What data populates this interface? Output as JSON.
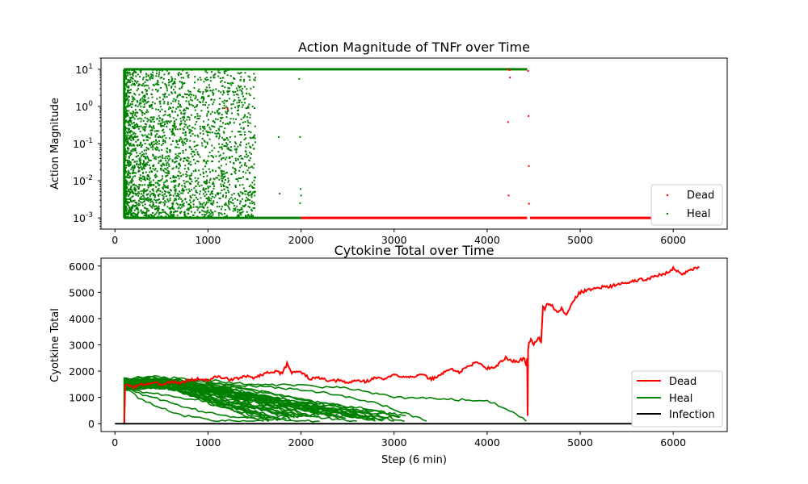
{
  "charts": [
    {
      "title": "Action Magnitude of TNFr over Time",
      "ylabel": "Action Magnitude",
      "xlabel": "",
      "y_exponents": [
        "1",
        "0",
        "-1",
        "-2",
        "-3"
      ],
      "x_ticks": [
        "0",
        "1000",
        "2000",
        "3000",
        "4000",
        "5000",
        "6000"
      ],
      "legend": [
        "Dead",
        "Heal"
      ]
    },
    {
      "title": "Cytokine Total over Time",
      "ylabel": "Cyotkine Total",
      "xlabel": "Step (6 min)",
      "y_ticks": [
        "0",
        "1000",
        "2000",
        "3000",
        "4000",
        "5000",
        "6000"
      ],
      "x_ticks": [
        "0",
        "1000",
        "2000",
        "3000",
        "4000",
        "5000",
        "6000"
      ],
      "legend": [
        "Dead",
        "Heal",
        "Infection"
      ]
    }
  ],
  "colors": {
    "dead": "#ff0000",
    "heal": "#008000",
    "infection": "#000000"
  },
  "chart_data": [
    {
      "type": "scatter",
      "title": "Action Magnitude of TNFr over Time",
      "xlabel": "",
      "ylabel": "Action Magnitude",
      "y_scale": "log",
      "xlim": [
        -150,
        6580
      ],
      "ylim": [
        0.0005,
        20
      ],
      "x_ticks": [
        0,
        1000,
        2000,
        3000,
        4000,
        5000,
        6000
      ],
      "y_ticks": [
        0.001,
        0.01,
        0.1,
        1,
        10
      ],
      "legend_position": "lower right",
      "series": [
        {
          "name": "Dead",
          "color": "#ff0000",
          "points": [
            [
              1180,
              0.9
            ],
            [
              1210,
              0.85
            ],
            [
              4220,
              10
            ],
            [
              4240,
              9.5
            ],
            [
              4245,
              6
            ],
            [
              4225,
              0.38
            ],
            [
              4230,
              0.004
            ],
            [
              4440,
              9
            ],
            [
              4445,
              0.55
            ],
            [
              4448,
              0.025
            ],
            [
              4450,
              0.0024
            ],
            [
              4260,
              0.001
            ],
            [
              4470,
              0.001
            ]
          ],
          "bands": [
            {
              "x_range": [
                2000,
                4430
              ],
              "y": 0.001
            },
            {
              "x_range": [
                4460,
                6280
              ],
              "y": 0.001
            },
            {
              "x_range": [
                2000,
                4430
              ],
              "y": 10
            }
          ]
        },
        {
          "name": "Heal",
          "color": "#008000",
          "points": [
            [
              120,
              8
            ],
            [
              160,
              0.5
            ],
            [
              200,
              0.02
            ],
            [
              250,
              3
            ],
            [
              300,
              0.004
            ],
            [
              340,
              0.15
            ],
            [
              390,
              0.002
            ],
            [
              430,
              1.2
            ],
            [
              470,
              0.03
            ],
            [
              520,
              0.006
            ],
            [
              560,
              0.4
            ],
            [
              600,
              0.0015
            ],
            [
              650,
              0.08
            ],
            [
              700,
              2
            ],
            [
              740,
              0.01
            ],
            [
              800,
              0.3
            ],
            [
              850,
              0.003
            ],
            [
              900,
              0.05
            ],
            [
              950,
              1.5
            ],
            [
              1000,
              0.007
            ],
            [
              1050,
              0.2
            ],
            [
              1100,
              0.002
            ],
            [
              1150,
              0.6
            ],
            [
              1250,
              0.015
            ],
            [
              1300,
              0.1
            ],
            [
              1350,
              5
            ],
            [
              1400,
              0.03
            ],
            [
              1450,
              0.5
            ],
            [
              1480,
              1.0
            ],
            [
              1500,
              0.9
            ],
            [
              1510,
              10
            ],
            [
              1760,
              0.15
            ],
            [
              1770,
              0.0045
            ],
            [
              1980,
              5.5
            ],
            [
              1990,
              0.15
            ],
            [
              1995,
              0.006
            ],
            [
              2000,
              0.004
            ],
            [
              1990,
              0.0025
            ]
          ],
          "bands": [
            {
              "x_range": [
                95,
                2000
              ],
              "y": 10
            },
            {
              "x_range": [
                95,
                2000
              ],
              "y": 0.001
            },
            {
              "x_range": [
                2000,
                4430
              ],
              "y": 10
            }
          ],
          "vertical_at": 100
        }
      ]
    },
    {
      "type": "line",
      "title": "Cytokine Total over Time",
      "xlabel": "Step (6 min)",
      "ylabel": "Cyotkine Total",
      "xlim": [
        -150,
        6580
      ],
      "ylim": [
        -300,
        6300
      ],
      "x_ticks": [
        0,
        1000,
        2000,
        3000,
        4000,
        5000,
        6000
      ],
      "y_ticks": [
        0,
        1000,
        2000,
        3000,
        4000,
        5000,
        6000
      ],
      "legend_position": "lower right",
      "series": [
        {
          "name": "Dead",
          "color": "#ff0000",
          "x": [
            100,
            110,
            130,
            200,
            300,
            400,
            500,
            600,
            700,
            800,
            900,
            1000,
            1100,
            1200,
            1300,
            1400,
            1500,
            1600,
            1700,
            1800,
            1850,
            1900,
            1950,
            2000,
            2100,
            2200,
            2300,
            2400,
            2500,
            2600,
            2700,
            2800,
            2900,
            3000,
            3100,
            3200,
            3300,
            3400,
            3500,
            3600,
            3700,
            3800,
            3900,
            4000,
            4100,
            4200,
            4300,
            4350,
            4400,
            4420,
            4430,
            4435,
            4440,
            4450,
            4470,
            4500,
            4550,
            4580,
            4600,
            4620,
            4650,
            4700,
            4750,
            4800,
            4850,
            4900,
            4950,
            5000,
            5100,
            5200,
            5300,
            5400,
            5500,
            5600,
            5700,
            5800,
            5900,
            6000,
            6100,
            6200,
            6280
          ],
          "y": [
            0,
            1500,
            1450,
            1400,
            1500,
            1550,
            1500,
            1600,
            1550,
            1650,
            1700,
            1650,
            1800,
            1700,
            1700,
            1800,
            1750,
            1900,
            2000,
            1900,
            2300,
            1950,
            2000,
            1950,
            1700,
            1750,
            1600,
            1650,
            1550,
            1650,
            1600,
            1750,
            1700,
            1850,
            1800,
            1800,
            1850,
            1700,
            1850,
            2100,
            1950,
            2200,
            2350,
            2100,
            2200,
            2500,
            2350,
            2400,
            2500,
            2200,
            2500,
            300,
            2800,
            3100,
            3200,
            3000,
            3300,
            3100,
            4500,
            4300,
            4600,
            4500,
            4200,
            4400,
            4100,
            4500,
            4800,
            5000,
            5100,
            5200,
            5200,
            5300,
            5350,
            5450,
            5500,
            5600,
            5700,
            5900,
            5700,
            5850,
            5950
          ]
        },
        {
          "name": "Heal",
          "color": "#008000",
          "curves": [
            {
              "x": [
                100,
                400,
                800,
                1200,
                1600,
                2000,
                2400,
                2800,
                3200,
                3350
              ],
              "y": [
                1400,
                1500,
                1600,
                1500,
                1400,
                1300,
                1100,
                800,
                300,
                100
              ]
            },
            {
              "x": [
                100,
                500,
                1000,
                1500,
                2000,
                2500,
                3000,
                3500,
                4000,
                4200,
                4420
              ],
              "y": [
                1400,
                1500,
                1650,
                1500,
                1450,
                1350,
                1000,
                950,
                850,
                600,
                100
              ]
            },
            {
              "x": [
                100,
                400,
                900,
                1400,
                1900,
                2300,
                2700,
                3000
              ],
              "y": [
                1400,
                1350,
                1300,
                1150,
                900,
                700,
                400,
                100
              ]
            },
            {
              "x": [
                100,
                300,
                700,
                1100,
                1500,
                1900,
                2300,
                2600
              ],
              "y": [
                1400,
                1200,
                1000,
                800,
                600,
                400,
                200,
                100
              ]
            },
            {
              "x": [
                100,
                300,
                600,
                900,
                1200,
                1500,
                1800,
                2200
              ],
              "y": [
                1400,
                1100,
                800,
                500,
                300,
                200,
                150,
                100
              ]
            },
            {
              "x": [
                100,
                250,
                500,
                750,
                1000,
                1300,
                1600
              ],
              "y": [
                1400,
                1000,
                600,
                300,
                150,
                100,
                100
              ]
            },
            {
              "x": [
                100,
                400,
                800,
                1200,
                1600,
                2000,
                2400,
                2800
              ],
              "y": [
                1400,
                1450,
                1300,
                1100,
                800,
                600,
                400,
                100
              ]
            }
          ],
          "note": "dense family of healing curves between x=100 and x≈3400, starting near 1300–1700 and decaying toward ~100"
        },
        {
          "name": "Infection",
          "color": "#000000",
          "x": [
            0,
            6280
          ],
          "y": [
            0,
            0
          ]
        }
      ]
    }
  ]
}
